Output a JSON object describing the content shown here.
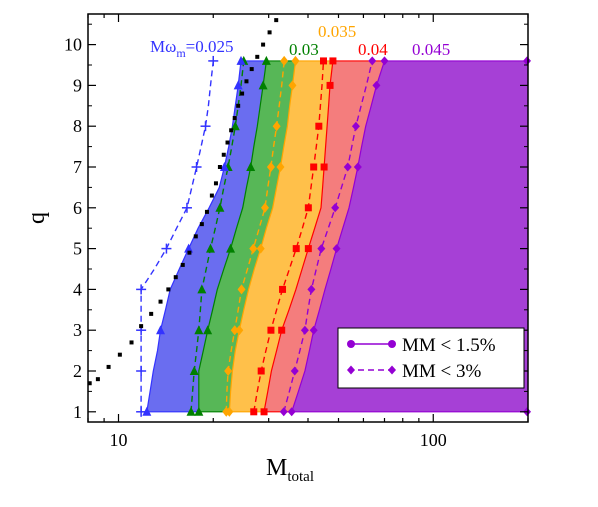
{
  "chart_data": {
    "type": "area",
    "xlabel": "M",
    "xlabel_sub": "total",
    "ylabel": "q",
    "xscale": "log",
    "xlim": [
      8,
      200
    ],
    "ylim": [
      0.75,
      10.75
    ],
    "x_tick_labels": [
      {
        "value": 10,
        "label": "10"
      },
      {
        "value": 100,
        "label": "100"
      }
    ],
    "y_ticks": [
      1,
      2,
      3,
      4,
      5,
      6,
      7,
      8,
      9,
      10
    ],
    "y_tick_labels": [
      "1",
      "2",
      "3",
      "4",
      "5",
      "6",
      "7",
      "8",
      "9",
      "10"
    ],
    "q_levels": [
      1,
      1.5,
      2,
      2.5,
      3,
      3.5,
      4,
      4.5,
      5,
      5.5,
      6,
      6.5,
      7,
      7.5,
      8,
      8.5,
      9,
      9.6
    ],
    "bands": [
      {
        "label": "Mω",
        "label_sub": "m",
        "label_value": "=0.025",
        "color": "#3333ff",
        "fill": "#6a6df0",
        "boundary_solid": [
          12.3,
          12.6,
          12.9,
          13.3,
          13.6,
          14.1,
          14.6,
          15.6,
          16.7,
          17.9,
          19.4,
          20.9,
          21.7,
          22.4,
          23.0,
          23.5,
          24.0,
          24.5
        ],
        "boundary_dashed": [
          11.8,
          11.8,
          11.8,
          11.8,
          11.8,
          11.8,
          11.8,
          13.0,
          14.2,
          15.3,
          16.5,
          17.1,
          17.7,
          18.3,
          18.9,
          19.3,
          19.6,
          20.0
        ]
      },
      {
        "label": "0.03",
        "color": "#008000",
        "fill": "#57b757",
        "boundary_solid": [
          18.0,
          18.0,
          18.0,
          18.6,
          19.2,
          19.9,
          20.6,
          21.6,
          22.7,
          23.7,
          24.8,
          25.5,
          26.3,
          26.9,
          27.6,
          28.2,
          28.8,
          29.5
        ],
        "boundary_dashed": [
          17.0,
          17.2,
          17.4,
          17.7,
          18.0,
          18.2,
          18.4,
          19.0,
          19.6,
          20.3,
          21.0,
          21.6,
          22.3,
          22.9,
          23.5,
          24.0,
          24.5,
          25.0
        ]
      },
      {
        "label": "0.035",
        "color": "#ffa500",
        "fill": "#ffc04a",
        "boundary_solid": [
          22.5,
          22.7,
          23.0,
          23.5,
          24.2,
          25.0,
          25.9,
          27.0,
          28.3,
          29.5,
          30.9,
          31.8,
          32.7,
          33.5,
          34.4,
          35.0,
          35.7,
          36.5
        ],
        "boundary_dashed": [
          22.0,
          22.1,
          22.3,
          22.8,
          23.4,
          24.0,
          24.6,
          25.7,
          26.8,
          28.0,
          29.2,
          29.8,
          30.5,
          31.1,
          31.8,
          32.4,
          33.0,
          33.6
        ]
      },
      {
        "label": "0.04",
        "color": "#ff0000",
        "fill": "#f47d7d",
        "boundary_solid": [
          29.0,
          29.8,
          30.6,
          31.8,
          33.0,
          34.8,
          36.6,
          38.3,
          40.1,
          42.0,
          44.0,
          44.5,
          45.0,
          45.5,
          46.0,
          46.5,
          47.0,
          48.0
        ],
        "boundary_dashed": [
          26.9,
          27.6,
          28.4,
          29.4,
          30.5,
          31.8,
          33.2,
          34.9,
          36.7,
          38.4,
          40.1,
          40.9,
          41.7,
          42.5,
          43.3,
          43.8,
          44.3,
          44.8
        ]
      },
      {
        "label": "0.045",
        "color": "#9400d3",
        "fill": "#a640d6",
        "boundary_solid": [
          35.5,
          37.3,
          39.1,
          40.4,
          41.7,
          43.5,
          45.3,
          47.3,
          49.3,
          51.6,
          54.0,
          55.8,
          57.6,
          59.2,
          61.0,
          63.5,
          66.0,
          70.0
        ],
        "boundary_dashed": [
          33.5,
          34.9,
          36.3,
          37.7,
          39.1,
          40.0,
          41.0,
          42.5,
          44.1,
          46.4,
          48.8,
          51.1,
          53.5,
          55.1,
          56.8,
          59.0,
          61.3,
          64.0
        ],
        "right_edge": 200
      }
    ],
    "dashed_markers": {
      "q": [
        1,
        2,
        3,
        4,
        5,
        6,
        7,
        8,
        9.6
      ],
      "x": [
        [
          11.8,
          11.8,
          11.8,
          11.8,
          14.2,
          16.5,
          17.7,
          18.9,
          20.0
        ],
        [
          17.0,
          17.4,
          18.0,
          18.4,
          19.6,
          21.0,
          22.3,
          23.5,
          25.0
        ],
        [
          22.0,
          22.3,
          23.4,
          24.6,
          26.8,
          29.2,
          30.5,
          31.8,
          33.6
        ],
        [
          26.9,
          28.4,
          30.5,
          33.2,
          36.7,
          40.1,
          41.7,
          43.3,
          44.8
        ],
        [
          33.5,
          36.3,
          39.1,
          41.0,
          44.1,
          48.8,
          53.5,
          56.8,
          64.0
        ]
      ]
    },
    "legend": {
      "position": "lower-right",
      "entries": [
        {
          "label": "MM < 1.5%",
          "style": "solid",
          "color": "#9400d3"
        },
        {
          "label": "MM < 3%",
          "style": "dashed",
          "color": "#9400d3"
        }
      ]
    },
    "black_dots": [
      [
        8.1,
        1.7
      ],
      [
        8.6,
        1.8
      ],
      [
        9.3,
        2.1
      ],
      [
        10.1,
        2.4
      ],
      [
        11.0,
        2.7
      ],
      [
        11.8,
        3.1
      ],
      [
        12.7,
        3.4
      ],
      [
        13.6,
        3.7
      ],
      [
        14.4,
        4.0
      ],
      [
        15.2,
        4.3
      ],
      [
        16.0,
        4.6
      ],
      [
        16.8,
        4.9
      ],
      [
        17.6,
        5.3
      ],
      [
        18.4,
        5.6
      ],
      [
        19.1,
        5.9
      ],
      [
        19.8,
        6.3
      ],
      [
        20.4,
        6.6
      ],
      [
        21.0,
        7.0
      ],
      [
        21.6,
        7.3
      ],
      [
        22.2,
        7.6
      ],
      [
        22.8,
        7.9
      ],
      [
        23.4,
        8.2
      ],
      [
        24.0,
        8.5
      ],
      [
        24.7,
        8.8
      ],
      [
        25.5,
        9.1
      ],
      [
        26.5,
        9.4
      ],
      [
        27.6,
        9.7
      ],
      [
        28.8,
        10.0
      ],
      [
        30.2,
        10.3
      ],
      [
        31.7,
        10.6
      ]
    ]
  }
}
